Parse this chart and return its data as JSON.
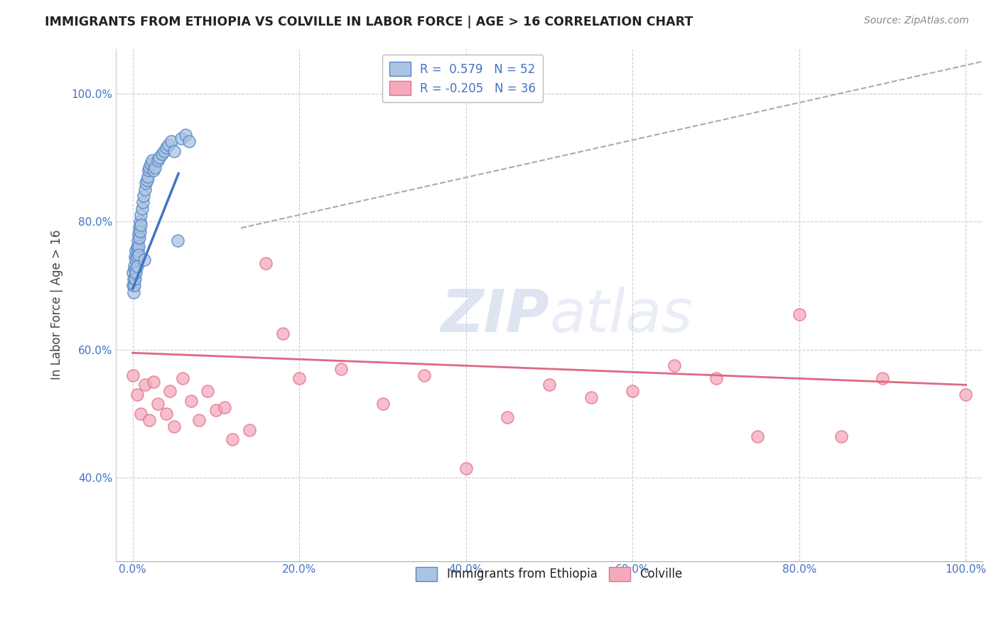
{
  "title": "IMMIGRANTS FROM ETHIOPIA VS COLVILLE IN LABOR FORCE | AGE > 16 CORRELATION CHART",
  "source": "Source: ZipAtlas.com",
  "ylabel": "In Labor Force | Age > 16",
  "xlim": [
    -0.02,
    1.02
  ],
  "ylim": [
    0.27,
    1.07
  ],
  "xticks": [
    0.0,
    0.2,
    0.4,
    0.6,
    0.8,
    1.0
  ],
  "xticklabels": [
    "0.0%",
    "20.0%",
    "40.0%",
    "60.0%",
    "80.0%",
    "100.0%"
  ],
  "yticks": [
    0.4,
    0.6,
    0.8,
    1.0
  ],
  "yticklabels": [
    "40.0%",
    "60.0%",
    "80.0%",
    "100.0%"
  ],
  "legend_labels": [
    "Immigrants from Ethiopia",
    "Colville"
  ],
  "blue_R": "0.579",
  "blue_N": "52",
  "pink_R": "-0.205",
  "pink_N": "36",
  "blue_color": "#aac4e2",
  "pink_color": "#f5aabb",
  "blue_edge_color": "#5585c8",
  "pink_edge_color": "#e07090",
  "blue_line_color": "#4472c4",
  "pink_line_color": "#e06880",
  "watermark_color": "#c8d4e8",
  "grid_color": "#ccccdd",
  "blue_scatter_x": [
    0.0,
    0.0,
    0.001,
    0.001,
    0.002,
    0.002,
    0.003,
    0.003,
    0.003,
    0.004,
    0.004,
    0.004,
    0.005,
    0.005,
    0.005,
    0.006,
    0.006,
    0.007,
    0.007,
    0.007,
    0.008,
    0.008,
    0.009,
    0.009,
    0.01,
    0.01,
    0.011,
    0.012,
    0.013,
    0.014,
    0.015,
    0.016,
    0.017,
    0.018,
    0.019,
    0.02,
    0.022,
    0.023,
    0.025,
    0.027,
    0.03,
    0.032,
    0.035,
    0.038,
    0.04,
    0.043,
    0.046,
    0.05,
    0.054,
    0.058,
    0.063,
    0.068
  ],
  "blue_scatter_y": [
    0.72,
    0.7,
    0.71,
    0.69,
    0.73,
    0.7,
    0.745,
    0.725,
    0.71,
    0.755,
    0.74,
    0.72,
    0.76,
    0.745,
    0.73,
    0.77,
    0.755,
    0.78,
    0.762,
    0.748,
    0.79,
    0.775,
    0.8,
    0.785,
    0.81,
    0.795,
    0.82,
    0.83,
    0.84,
    0.74,
    0.85,
    0.86,
    0.865,
    0.87,
    0.88,
    0.885,
    0.89,
    0.895,
    0.88,
    0.885,
    0.895,
    0.9,
    0.905,
    0.91,
    0.915,
    0.92,
    0.925,
    0.91,
    0.77,
    0.93,
    0.935,
    0.925
  ],
  "pink_scatter_x": [
    0.0,
    0.005,
    0.01,
    0.015,
    0.02,
    0.025,
    0.03,
    0.04,
    0.045,
    0.05,
    0.06,
    0.07,
    0.08,
    0.09,
    0.1,
    0.11,
    0.12,
    0.14,
    0.16,
    0.18,
    0.2,
    0.25,
    0.3,
    0.35,
    0.4,
    0.45,
    0.5,
    0.55,
    0.6,
    0.65,
    0.7,
    0.75,
    0.8,
    0.85,
    0.9,
    1.0
  ],
  "pink_scatter_y": [
    0.56,
    0.53,
    0.5,
    0.545,
    0.49,
    0.55,
    0.515,
    0.5,
    0.535,
    0.48,
    0.555,
    0.52,
    0.49,
    0.535,
    0.505,
    0.51,
    0.46,
    0.475,
    0.735,
    0.625,
    0.555,
    0.57,
    0.515,
    0.56,
    0.415,
    0.495,
    0.545,
    0.525,
    0.535,
    0.575,
    0.555,
    0.465,
    0.655,
    0.465,
    0.555,
    0.53
  ],
  "blue_trend_x": [
    0.0,
    0.055
  ],
  "blue_trend_y": [
    0.695,
    0.875
  ],
  "pink_trend_x": [
    0.0,
    1.0
  ],
  "pink_trend_y": [
    0.595,
    0.545
  ],
  "dashed_trend_x": [
    0.13,
    1.02
  ],
  "dashed_trend_y": [
    0.79,
    1.05
  ]
}
